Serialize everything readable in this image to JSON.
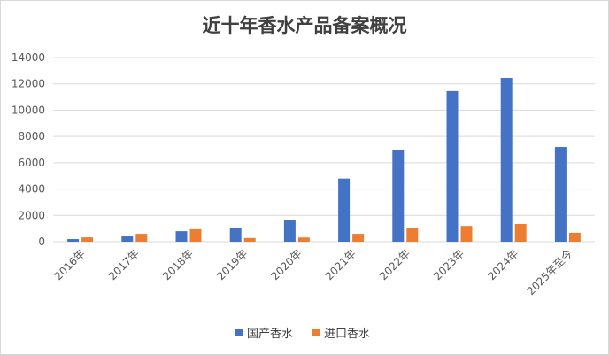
{
  "chart_data": {
    "type": "bar",
    "title": "近十年香水产品备案概况",
    "categories": [
      "2016年",
      "2017年",
      "2018年",
      "2019年",
      "2020年",
      "2021年",
      "2022年",
      "2023年",
      "2024年",
      "2025年至今"
    ],
    "series": [
      {
        "name": "国产香水",
        "color": "#4472c4",
        "values": [
          200,
          400,
          800,
          1050,
          1650,
          4800,
          7000,
          11450,
          12450,
          7200
        ]
      },
      {
        "name": "进口香水",
        "color": "#ed7d31",
        "values": [
          330,
          600,
          950,
          280,
          320,
          600,
          1050,
          1200,
          1350,
          680
        ]
      }
    ],
    "ylim": [
      0,
      14000
    ],
    "yticks": [
      0,
      2000,
      4000,
      6000,
      8000,
      10000,
      12000,
      14000
    ],
    "grid": true,
    "legend": "bottom",
    "xlabel": "",
    "ylabel": ""
  }
}
